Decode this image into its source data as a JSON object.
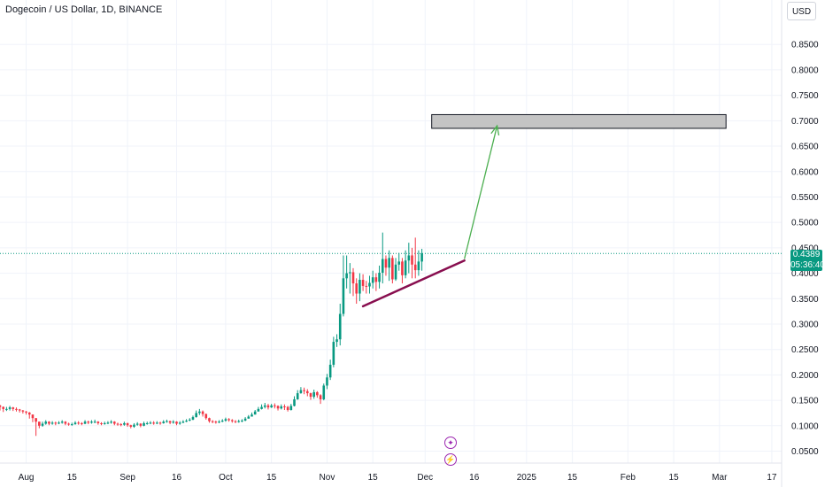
{
  "title": "Dogecoin / US Dollar, 1D, BINANCE",
  "currency": "USD",
  "last_price": "0.4389",
  "countdown": "05:36:40",
  "events": [
    {
      "icon": "star-event-icon",
      "glyph": "✦"
    },
    {
      "icon": "lightning-event-icon",
      "glyph": "⚡"
    }
  ],
  "colors": {
    "up": "#089981",
    "down": "#f23645",
    "trendline": "#880e4f",
    "arrow": "#4caf50",
    "target_fill": "#c4c4c4",
    "last_price_line": "#089981",
    "grid": "#f0f3fa",
    "axis_text": "#131722"
  },
  "chart_data": {
    "type": "candlestick",
    "title": "Dogecoin / US Dollar, 1D, BINANCE",
    "y_axis_side": "right",
    "ylim": [
      0.03,
      0.88
    ],
    "y_ticks": [
      "0.8500",
      "0.8000",
      "0.7500",
      "0.7000",
      "0.6500",
      "0.6000",
      "0.5500",
      "0.5000",
      "0.4500",
      "0.4000",
      "0.3500",
      "0.3000",
      "0.2500",
      "0.2000",
      "0.1500",
      "0.1000",
      "0.0500"
    ],
    "x_range": [
      "2024-07-24",
      "2025-03-20"
    ],
    "x_ticks": [
      {
        "label": "Aug",
        "date": "2024-08-01"
      },
      {
        "label": "15",
        "date": "2024-08-15"
      },
      {
        "label": "Sep",
        "date": "2024-09-01"
      },
      {
        "label": "16",
        "date": "2024-09-16"
      },
      {
        "label": "Oct",
        "date": "2024-10-01"
      },
      {
        "label": "15",
        "date": "2024-10-15"
      },
      {
        "label": "Nov",
        "date": "2024-11-01"
      },
      {
        "label": "15",
        "date": "2024-11-15"
      },
      {
        "label": "Dec",
        "date": "2024-12-01"
      },
      {
        "label": "16",
        "date": "2024-12-16"
      },
      {
        "label": "2025",
        "date": "2025-01-01"
      },
      {
        "label": "15",
        "date": "2025-01-15"
      },
      {
        "label": "Feb",
        "date": "2025-02-01"
      },
      {
        "label": "15",
        "date": "2025-02-15"
      },
      {
        "label": "Mar",
        "date": "2025-03-01"
      },
      {
        "label": "17",
        "date": "2025-03-17"
      }
    ],
    "closes": [
      0.14,
      0.137,
      0.133,
      0.133,
      0.136,
      0.133,
      0.132,
      0.13,
      0.128,
      0.126,
      0.122,
      0.115,
      0.108,
      0.1,
      0.104,
      0.108,
      0.104,
      0.106,
      0.105,
      0.106,
      0.108,
      0.104,
      0.103,
      0.103,
      0.106,
      0.105,
      0.104,
      0.108,
      0.106,
      0.108,
      0.108,
      0.105,
      0.104,
      0.105,
      0.106,
      0.108,
      0.104,
      0.103,
      0.102,
      0.105,
      0.101,
      0.098,
      0.102,
      0.104,
      0.1,
      0.105,
      0.105,
      0.106,
      0.105,
      0.106,
      0.105,
      0.108,
      0.109,
      0.106,
      0.108,
      0.104,
      0.106,
      0.108,
      0.11,
      0.112,
      0.117,
      0.125,
      0.128,
      0.123,
      0.115,
      0.109,
      0.108,
      0.107,
      0.108,
      0.11,
      0.113,
      0.111,
      0.109,
      0.108,
      0.109,
      0.11,
      0.114,
      0.118,
      0.122,
      0.128,
      0.133,
      0.137,
      0.14,
      0.136,
      0.14,
      0.139,
      0.134,
      0.138,
      0.137,
      0.131,
      0.139,
      0.152,
      0.164,
      0.17,
      0.168,
      0.164,
      0.157,
      0.166,
      0.16,
      0.152,
      0.179,
      0.195,
      0.22,
      0.265,
      0.27,
      0.32,
      0.39,
      0.4,
      0.402,
      0.38,
      0.36,
      0.387,
      0.375,
      0.374,
      0.381,
      0.392,
      0.383,
      0.401,
      0.428,
      0.411,
      0.43,
      0.388,
      0.417,
      0.423,
      0.396,
      0.425,
      0.435,
      0.417,
      0.406,
      0.423,
      0.4389
    ],
    "highs": [
      0.146,
      0.141,
      0.138,
      0.137,
      0.139,
      0.137,
      0.136,
      0.133,
      0.131,
      0.129,
      0.127,
      0.12,
      0.113,
      0.104,
      0.108,
      0.111,
      0.109,
      0.109,
      0.108,
      0.109,
      0.111,
      0.109,
      0.106,
      0.106,
      0.109,
      0.109,
      0.107,
      0.111,
      0.11,
      0.111,
      0.112,
      0.109,
      0.107,
      0.108,
      0.109,
      0.111,
      0.109,
      0.106,
      0.105,
      0.108,
      0.106,
      0.102,
      0.105,
      0.107,
      0.105,
      0.108,
      0.108,
      0.109,
      0.109,
      0.109,
      0.108,
      0.111,
      0.112,
      0.11,
      0.111,
      0.109,
      0.109,
      0.111,
      0.113,
      0.115,
      0.12,
      0.13,
      0.133,
      0.13,
      0.124,
      0.116,
      0.111,
      0.11,
      0.111,
      0.113,
      0.116,
      0.115,
      0.113,
      0.111,
      0.112,
      0.113,
      0.117,
      0.121,
      0.126,
      0.131,
      0.137,
      0.142,
      0.145,
      0.143,
      0.143,
      0.144,
      0.14,
      0.142,
      0.142,
      0.139,
      0.143,
      0.158,
      0.17,
      0.176,
      0.175,
      0.172,
      0.165,
      0.171,
      0.168,
      0.162,
      0.183,
      0.202,
      0.23,
      0.275,
      0.28,
      0.34,
      0.435,
      0.435,
      0.42,
      0.41,
      0.39,
      0.4,
      0.398,
      0.385,
      0.395,
      0.405,
      0.4,
      0.415,
      0.48,
      0.435,
      0.445,
      0.435,
      0.43,
      0.44,
      0.43,
      0.445,
      0.46,
      0.45,
      0.47,
      0.445,
      0.448
    ],
    "lows": [
      0.132,
      0.13,
      0.127,
      0.129,
      0.13,
      0.129,
      0.128,
      0.126,
      0.124,
      0.122,
      0.114,
      0.107,
      0.08,
      0.095,
      0.098,
      0.102,
      0.101,
      0.102,
      0.101,
      0.103,
      0.104,
      0.101,
      0.1,
      0.1,
      0.102,
      0.102,
      0.101,
      0.103,
      0.103,
      0.104,
      0.105,
      0.102,
      0.101,
      0.102,
      0.103,
      0.104,
      0.101,
      0.1,
      0.099,
      0.1,
      0.098,
      0.095,
      0.096,
      0.1,
      0.097,
      0.099,
      0.102,
      0.103,
      0.102,
      0.103,
      0.102,
      0.104,
      0.106,
      0.103,
      0.104,
      0.101,
      0.102,
      0.105,
      0.107,
      0.109,
      0.111,
      0.116,
      0.121,
      0.118,
      0.112,
      0.106,
      0.105,
      0.104,
      0.105,
      0.107,
      0.108,
      0.108,
      0.106,
      0.105,
      0.106,
      0.107,
      0.109,
      0.114,
      0.118,
      0.123,
      0.128,
      0.132,
      0.134,
      0.132,
      0.135,
      0.134,
      0.13,
      0.132,
      0.131,
      0.128,
      0.13,
      0.138,
      0.151,
      0.163,
      0.162,
      0.158,
      0.151,
      0.153,
      0.155,
      0.143,
      0.15,
      0.172,
      0.19,
      0.215,
      0.255,
      0.258,
      0.315,
      0.37,
      0.36,
      0.355,
      0.34,
      0.345,
      0.365,
      0.36,
      0.36,
      0.37,
      0.365,
      0.37,
      0.38,
      0.395,
      0.385,
      0.38,
      0.385,
      0.405,
      0.38,
      0.39,
      0.4,
      0.39,
      0.39,
      0.395,
      0.405
    ],
    "last_price": 0.4389,
    "annotations": {
      "trendline": [
        {
          "date": "2024-11-12",
          "price": 0.335
        },
        {
          "date": "2024-12-13",
          "price": 0.425
        }
      ],
      "arrow": [
        {
          "date": "2024-12-13",
          "price": 0.428
        },
        {
          "date": "2024-12-23",
          "price": 0.69
        }
      ],
      "target_box": {
        "from_date": "2024-12-03",
        "to_date": "2025-03-03",
        "price_low": 0.685,
        "price_high": 0.712
      }
    }
  }
}
